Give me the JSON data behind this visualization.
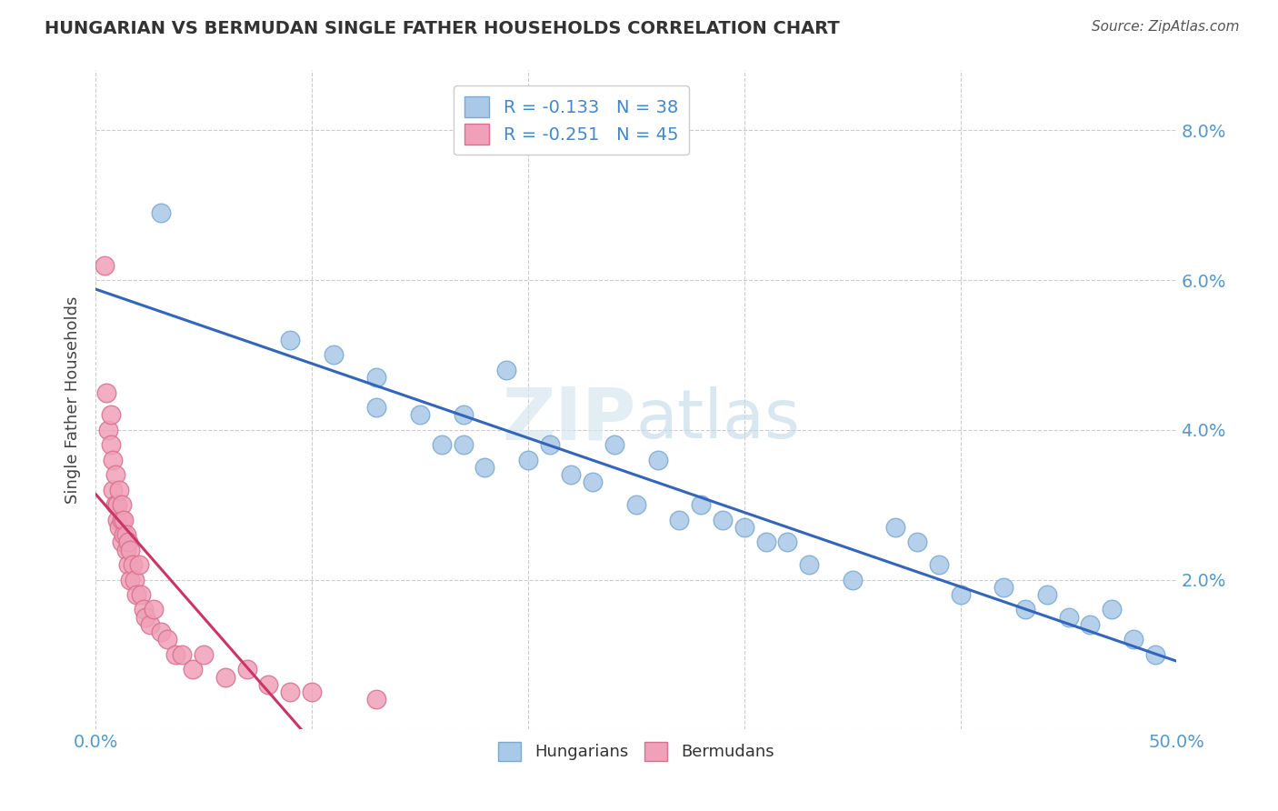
{
  "title": "HUNGARIAN VS BERMUDAN SINGLE FATHER HOUSEHOLDS CORRELATION CHART",
  "source": "Source: ZipAtlas.com",
  "ylabel": "Single Father Households",
  "watermark_zip": "ZIP",
  "watermark_atlas": "atlas",
  "xlim": [
    0.0,
    0.5
  ],
  "ylim": [
    0.0,
    0.088
  ],
  "hungarian_color": "#aac8e8",
  "bermudan_color": "#f0a0b8",
  "hungarian_edge": "#7aaad0",
  "bermudan_edge": "#d87090",
  "trendline_hungarian_color": "#3366bb",
  "trendline_bermudan_color": "#cc3366",
  "legend_R_hungarian": "R = -0.133",
  "legend_N_hungarian": "N = 38",
  "legend_R_bermudan": "R = -0.251",
  "legend_N_bermudan": "N = 45",
  "grid_color": "#cccccc",
  "title_color": "#333333",
  "axis_label_color": "#444444",
  "tick_color": "#5599cc",
  "source_color": "#555555",
  "legend_text_color": "#4488cc",
  "hungarian_x": [
    0.03,
    0.09,
    0.11,
    0.13,
    0.13,
    0.15,
    0.16,
    0.17,
    0.17,
    0.18,
    0.19,
    0.2,
    0.21,
    0.22,
    0.23,
    0.24,
    0.25,
    0.26,
    0.27,
    0.28,
    0.29,
    0.3,
    0.31,
    0.32,
    0.33,
    0.35,
    0.37,
    0.38,
    0.39,
    0.4,
    0.42,
    0.43,
    0.44,
    0.45,
    0.46,
    0.47,
    0.48,
    0.49
  ],
  "hungarian_y": [
    0.069,
    0.052,
    0.05,
    0.043,
    0.047,
    0.042,
    0.038,
    0.042,
    0.038,
    0.035,
    0.048,
    0.036,
    0.038,
    0.034,
    0.033,
    0.038,
    0.03,
    0.036,
    0.028,
    0.03,
    0.028,
    0.027,
    0.025,
    0.025,
    0.022,
    0.02,
    0.027,
    0.025,
    0.022,
    0.018,
    0.019,
    0.016,
    0.018,
    0.015,
    0.014,
    0.016,
    0.012,
    0.01
  ],
  "bermudan_x": [
    0.004,
    0.005,
    0.006,
    0.007,
    0.007,
    0.008,
    0.008,
    0.009,
    0.009,
    0.01,
    0.01,
    0.011,
    0.011,
    0.012,
    0.012,
    0.012,
    0.013,
    0.013,
    0.014,
    0.014,
    0.015,
    0.015,
    0.016,
    0.016,
    0.017,
    0.018,
    0.019,
    0.02,
    0.021,
    0.022,
    0.023,
    0.025,
    0.027,
    0.03,
    0.033,
    0.037,
    0.04,
    0.045,
    0.05,
    0.06,
    0.07,
    0.08,
    0.09,
    0.1,
    0.13
  ],
  "bermudan_y": [
    0.062,
    0.045,
    0.04,
    0.042,
    0.038,
    0.036,
    0.032,
    0.03,
    0.034,
    0.028,
    0.03,
    0.032,
    0.027,
    0.028,
    0.025,
    0.03,
    0.026,
    0.028,
    0.024,
    0.026,
    0.025,
    0.022,
    0.024,
    0.02,
    0.022,
    0.02,
    0.018,
    0.022,
    0.018,
    0.016,
    0.015,
    0.014,
    0.016,
    0.013,
    0.012,
    0.01,
    0.01,
    0.008,
    0.01,
    0.007,
    0.008,
    0.006,
    0.005,
    0.005,
    0.004
  ]
}
